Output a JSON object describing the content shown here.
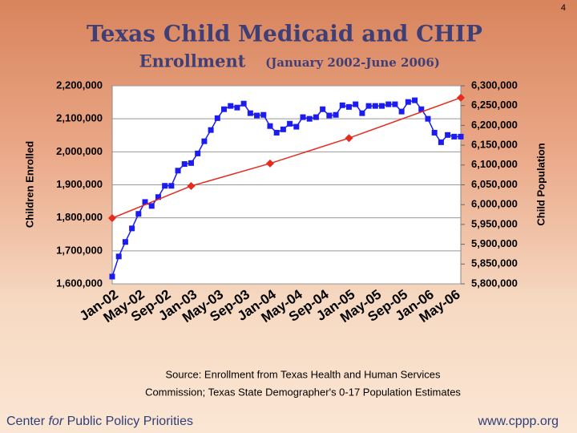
{
  "page_number": "4",
  "source": [
    "Source: Enrollment from Texas Health and Human Services",
    "Commission; Texas State Demographer's 0-17 Population Estimates"
  ],
  "footer": {
    "left": [
      "Center ",
      "for",
      " Public Policy Priorities"
    ],
    "right": "www.cppp.org"
  },
  "chart_data": {
    "type": "line",
    "title": "Texas Child Medicaid and CHIP",
    "subtitle": [
      "Enrollment",
      "(January 2002-June 2006)"
    ],
    "y_label": "Children Enrolled",
    "y2_label": "Child Population",
    "categories": [
      "Jan-02",
      null,
      null,
      null,
      "May-02",
      null,
      null,
      null,
      "Sep-02",
      null,
      null,
      null,
      "Jan-03",
      null,
      null,
      null,
      "May-03",
      null,
      null,
      null,
      "Sep-03",
      null,
      null,
      null,
      "Jan-04",
      null,
      null,
      null,
      "May-04",
      null,
      null,
      null,
      "Sep-04",
      null,
      null,
      null,
      "Jan-05",
      null,
      null,
      null,
      "May-05",
      null,
      null,
      null,
      "Sep-05",
      null,
      null,
      null,
      "Jan-06",
      null,
      null,
      null,
      "May-06",
      null
    ],
    "series": [
      {
        "color": "#1c1cf0",
        "marker": "square",
        "values": [
          1622000,
          1683000,
          1727000,
          1768000,
          1812000,
          1848000,
          1836000,
          1863000,
          1897000,
          1897000,
          1943000,
          1963000,
          1966000,
          1995000,
          2032000,
          2066000,
          2102000,
          2129000,
          2139000,
          2134000,
          2146000,
          2117000,
          2110000,
          2112000,
          2078000,
          2058000,
          2068000,
          2085000,
          2076000,
          2105000,
          2100000,
          2105000,
          2129000,
          2110000,
          2112000,
          2141000,
          2136000,
          2144000,
          2117000,
          2139000,
          2139000,
          2139000,
          2144000,
          2144000,
          2122000,
          2151000,
          2156000,
          2129000,
          2100000,
          2058000,
          2029000,
          2051000,
          2046000,
          2046000
        ]
      },
      {
        "color": "#e62a1e",
        "marker": "diamond",
        "axis": "y2",
        "values": [
          5966000,
          null,
          null,
          null,
          null,
          null,
          null,
          null,
          null,
          null,
          null,
          null,
          6047000,
          null,
          null,
          null,
          null,
          null,
          null,
          null,
          null,
          null,
          null,
          null,
          6104000,
          null,
          null,
          null,
          null,
          null,
          null,
          null,
          null,
          null,
          null,
          null,
          6168000,
          null,
          null,
          null,
          null,
          null,
          null,
          null,
          null,
          null,
          null,
          null,
          null,
          null,
          null,
          null,
          null,
          6270000
        ]
      }
    ],
    "ylim": [
      1600000,
      2200000
    ],
    "yticks": [
      {
        "value": 1600000,
        "label": "1,600,000"
      },
      {
        "value": 1700000,
        "label": "1,700,000"
      },
      {
        "value": 1800000,
        "label": "1,800,000"
      },
      {
        "value": 1900000,
        "label": "1,900,000"
      },
      {
        "value": 2000000,
        "label": "2,000,000"
      },
      {
        "value": 2100000,
        "label": "2,100,000"
      },
      {
        "value": 2200000,
        "label": "2,200,000"
      }
    ],
    "y2lim": [
      5800000,
      6300000
    ],
    "y2ticks": [
      {
        "value": 5800000,
        "label": "5,800,000"
      },
      {
        "value": 5850000,
        "label": "5,850,000"
      },
      {
        "value": 5900000,
        "label": "5,900,000"
      },
      {
        "value": 5950000,
        "label": "5,950,000"
      },
      {
        "value": 6000000,
        "label": "6,000,000"
      },
      {
        "value": 6050000,
        "label": "6,050,000"
      },
      {
        "value": 6100000,
        "label": "6,100,000"
      },
      {
        "value": 6150000,
        "label": "6,150,000"
      },
      {
        "value": 6200000,
        "label": "6,200,000"
      },
      {
        "value": 6250000,
        "label": "6,250,000"
      },
      {
        "value": 6300000,
        "label": "6,300,000"
      }
    ],
    "grid": true
  }
}
